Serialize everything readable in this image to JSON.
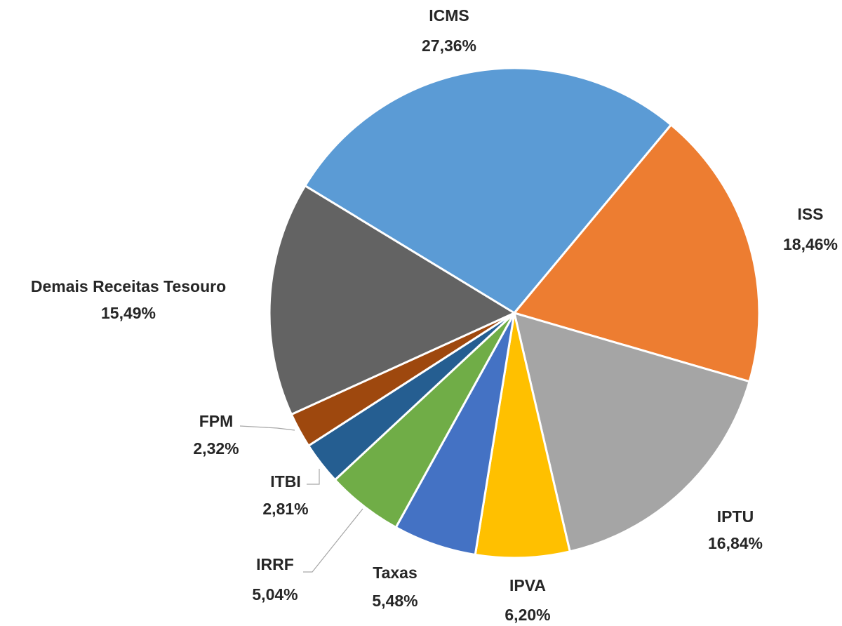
{
  "chart_data": {
    "type": "pie",
    "categories": [
      "ICMS",
      "ISS",
      "IPTU",
      "IPVA",
      "Taxas",
      "IRRF",
      "ITBI",
      "FPM",
      "Demais Receitas Tesouro"
    ],
    "values": [
      27.36,
      18.46,
      16.84,
      6.2,
      5.48,
      5.04,
      2.81,
      2.32,
      15.49
    ],
    "value_labels": [
      "27,36%",
      "18,46%",
      "16,84%",
      "6,20%",
      "5,48%",
      "5,04%",
      "2,81%",
      "2,32%",
      "15,49%"
    ],
    "colors": [
      "#5b9bd5",
      "#ed7d31",
      "#a5a5a5",
      "#ffc000",
      "#4472c4",
      "#70ad47",
      "#255e91",
      "#9e480e",
      "#636363"
    ]
  }
}
